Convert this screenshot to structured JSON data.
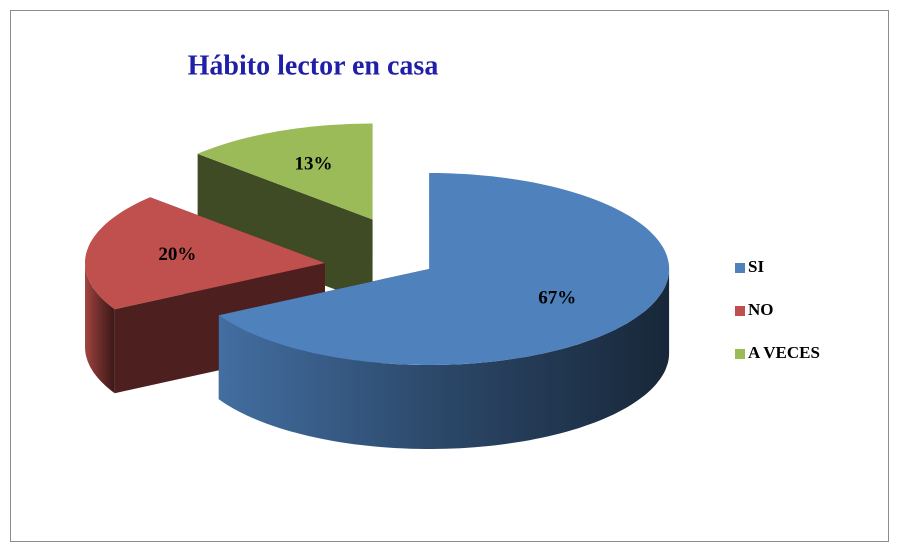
{
  "chart_data": {
    "type": "pie",
    "title": "Hábito lector en casa",
    "categories": [
      "SI",
      "NO",
      "A VECES"
    ],
    "values": [
      67,
      20,
      13
    ],
    "value_labels": [
      "67%",
      "20%",
      "13%"
    ],
    "colors": [
      "#4f81bd",
      "#c0504d",
      "#9bbb59"
    ],
    "legend": "right"
  }
}
